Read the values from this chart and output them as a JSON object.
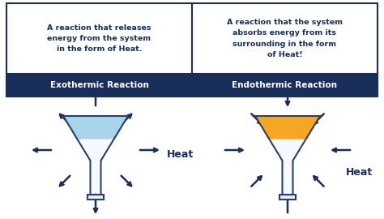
{
  "background_color": "#ffffff",
  "header_bg_color": "#1a2e5a",
  "header_text_color": "#ffffff",
  "cell_bg_color": "#ffffff",
  "cell_text_color": "#1a2e5a",
  "border_color": "#1a2e5a",
  "flask_left_fill": "#aad4ea",
  "flask_right_fill": "#f5a623",
  "flask_body_fill": "#e8f4fb",
  "flask_right_body_fill": "#fde8b8",
  "flask_outline": "#2a3f6f",
  "arrow_color": "#1a2e5a",
  "heat_text_color": "#1a2e5a",
  "exo_title": "Exothermic Reaction",
  "endo_title": "Endothermic Reaction",
  "exo_desc": "A reaction that releases\nenergy from the system\nin the form of Heat.",
  "endo_desc": "A reaction that the system\nabsorbs energy from its\nsurrounding in the form\nof Heat!",
  "heat_label": "Heat"
}
